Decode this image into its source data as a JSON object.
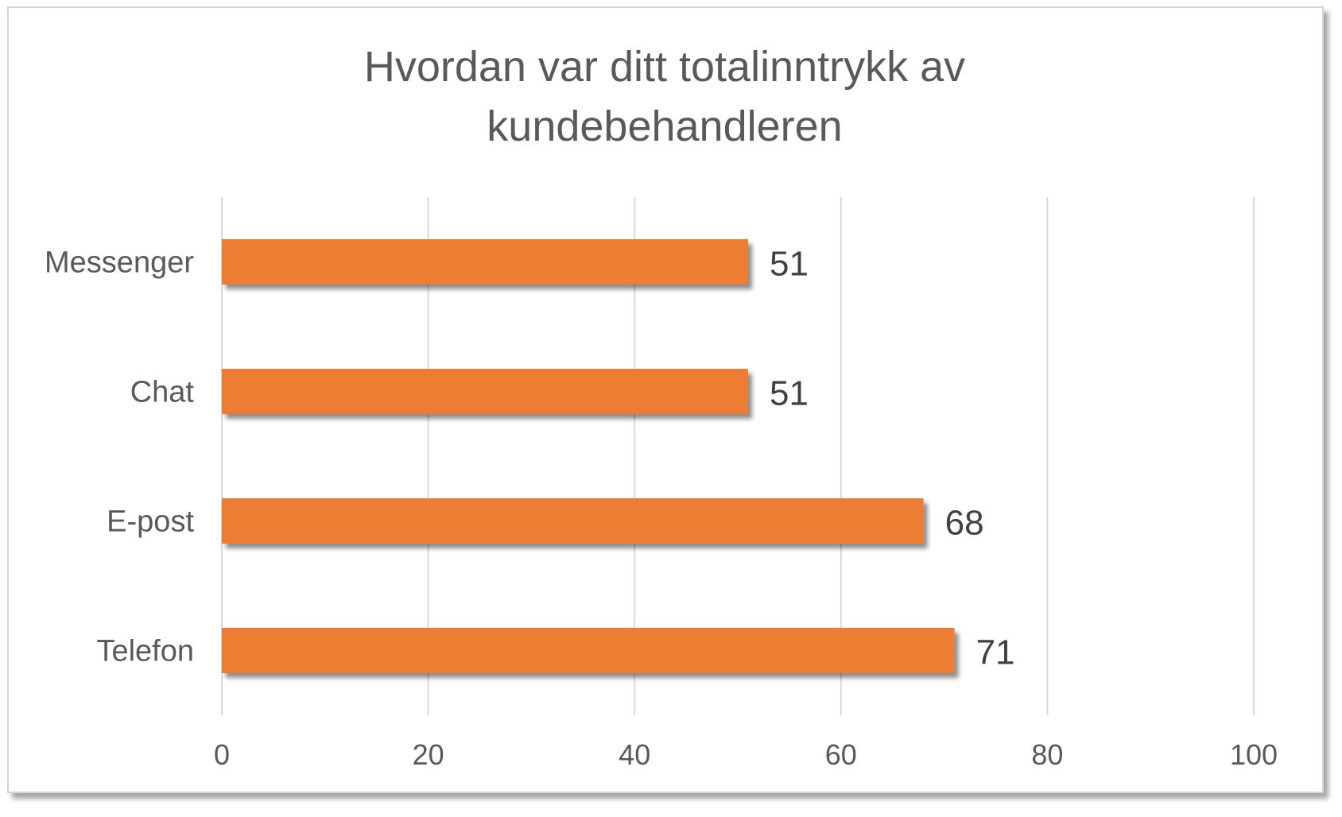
{
  "chart_data": {
    "type": "bar",
    "orientation": "horizontal",
    "title_lines": [
      "Hvordan var ditt totalinntrykk av",
      "kundebehandleren"
    ],
    "categories": [
      "Messenger",
      "Chat",
      "E-post",
      "Telefon"
    ],
    "values": [
      51,
      51,
      68,
      71
    ],
    "data_labels": [
      "51",
      "51",
      "68",
      "71"
    ],
    "xlim": [
      0,
      100
    ],
    "x_ticks": [
      "0",
      "20",
      "40",
      "60",
      "80",
      "100"
    ],
    "xlabel": "",
    "ylabel": "",
    "grid": true,
    "legend": "none",
    "bar_color": "#ED7D31",
    "grid_color": "#D9D9D9",
    "text_color": "#595959"
  }
}
